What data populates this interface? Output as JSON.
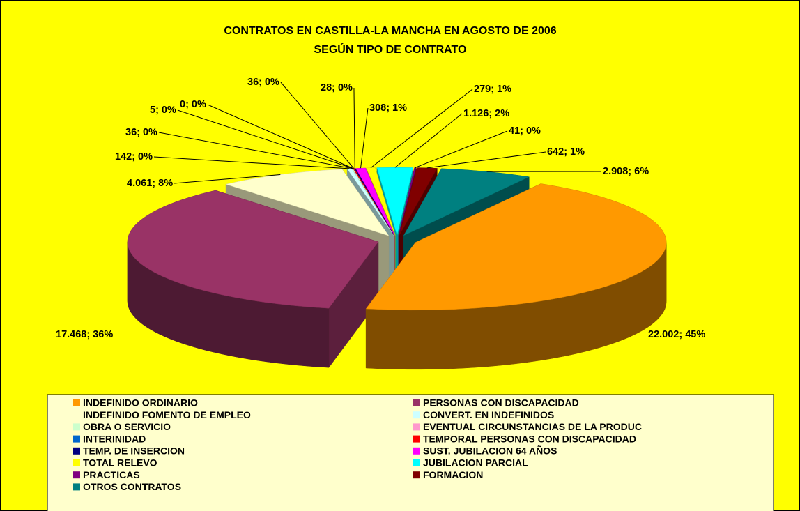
{
  "chart_data": {
    "type": "pie3d",
    "title": "CONTRATOS EN CASTILLA-LA MANCHA EN AGOSTO DE 2006",
    "subtitle": "SEGÚN TIPO DE CONTRATO",
    "categories": [
      "INDEFINIDO ORDINARIO",
      "PERSONAS CON DISCAPACIDAD",
      "INDEFINIDO FOMENTO DE EMPLEO",
      "CONVERT. EN INDEFINIDOS",
      "OBRA O SERVICIO",
      "EVENTUAL CIRCUNSTANCIAS DE LA PRODUC",
      "INTERINIDAD",
      "TEMPORAL PERSONAS CON DISCAPACIDAD",
      "TEMP. DE INSERCION",
      "SUST. JUBILACION 64 AÑOS",
      "TOTAL RELEVO",
      "JUBILACION PARCIAL",
      "PRACTICAS",
      "FORMACION",
      "OTROS CONTRATOS"
    ],
    "values": [
      22002,
      17468,
      4061,
      142,
      36,
      5,
      0,
      36,
      28,
      308,
      279,
      1126,
      41,
      642,
      2908
    ],
    "value_labels": [
      "22.002; 45%",
      "17.468; 36%",
      "4.061; 8%",
      "142; 0%",
      "36; 0%",
      "5; 0%",
      "0; 0%",
      "36; 0%",
      "28; 0%",
      "308; 1%",
      "279; 1%",
      "1.126; 2%",
      "41; 0%",
      "642; 1%",
      "2.908; 6%"
    ],
    "colors": [
      "#FF9900",
      "#993366",
      "#FFFFCC",
      "#CCFFFF",
      "#CCFFCC",
      "#FF99CC",
      "#0066CC",
      "#FF0000",
      "#000080",
      "#FF00FF",
      "#FFFF00",
      "#00FFFF",
      "#800080",
      "#800000",
      "#008080"
    ],
    "legend": "bottom"
  }
}
